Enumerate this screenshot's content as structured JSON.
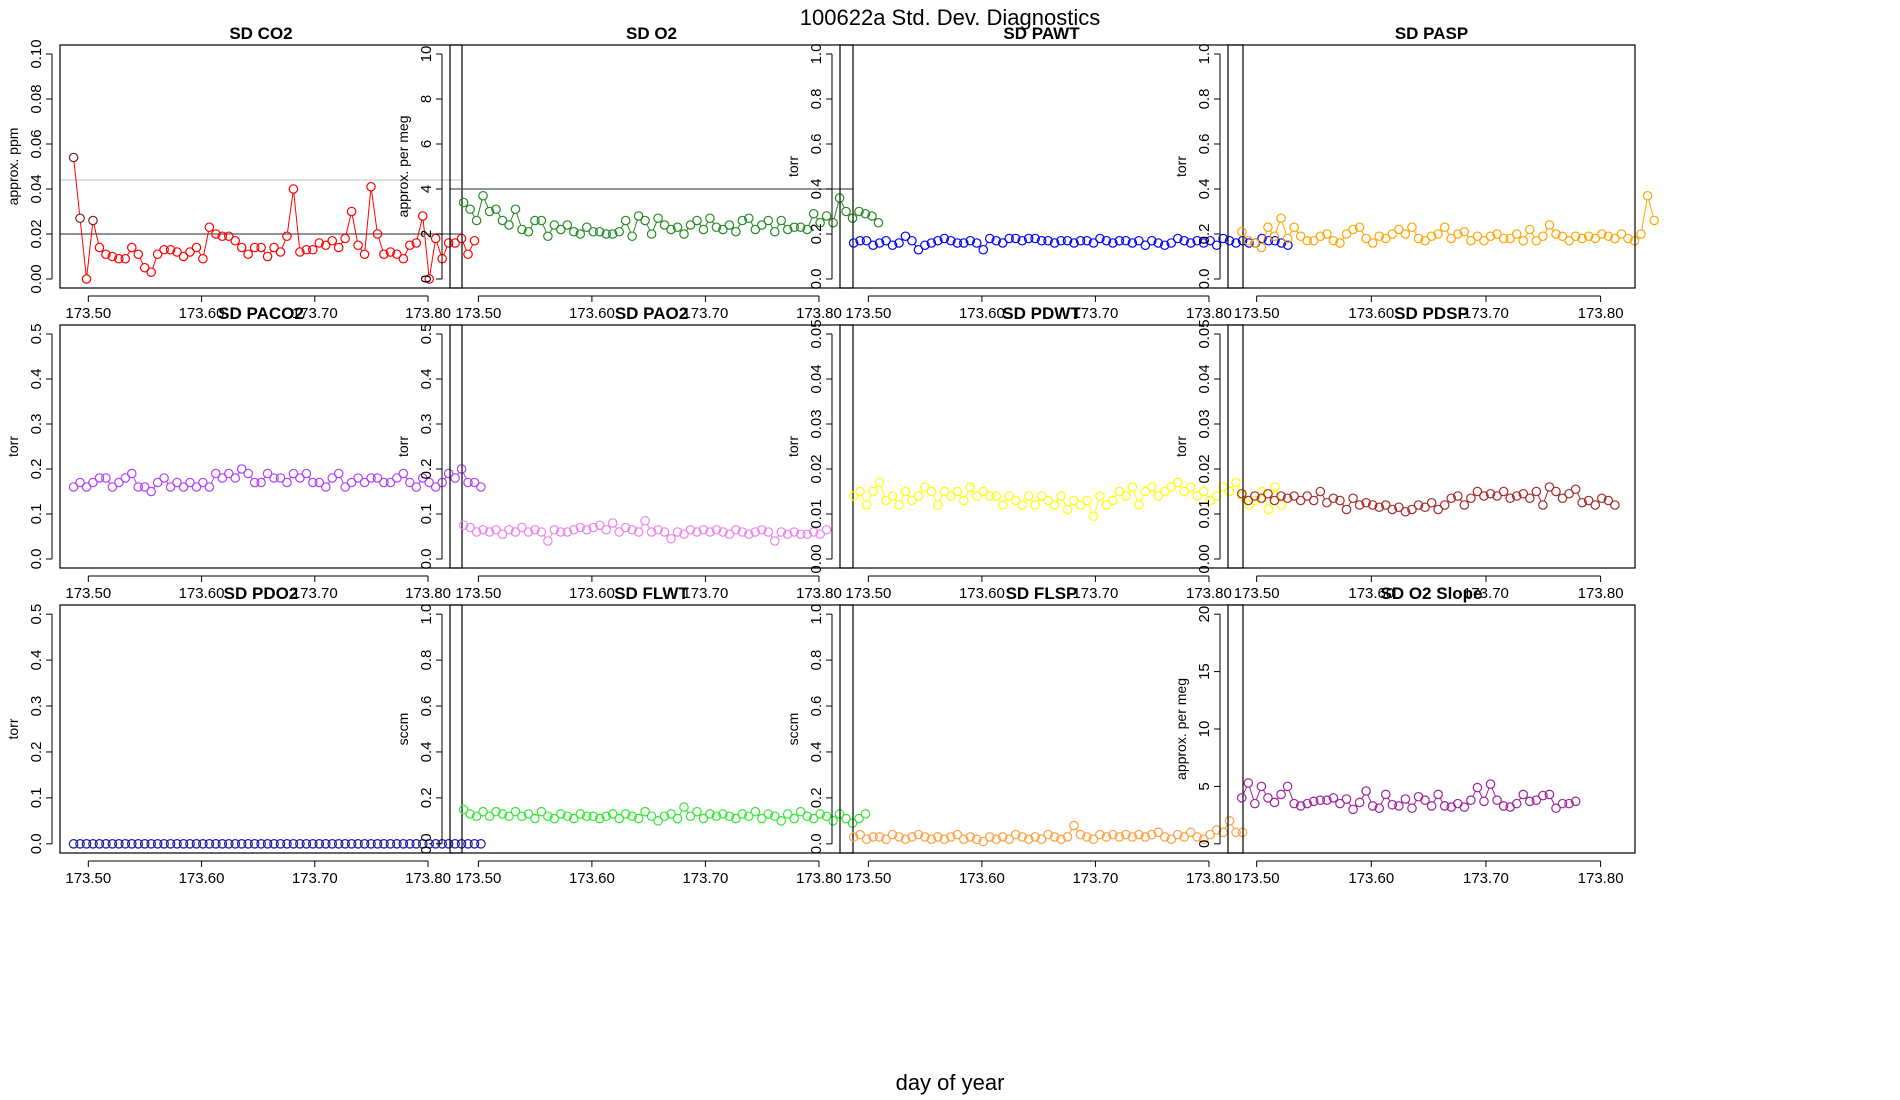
{
  "figure": {
    "title": "100622a   Std. Dev. Diagnostics",
    "xlabel": "day of year"
  },
  "chart_data": [
    {
      "type": "scatter",
      "title": "SD CO2",
      "ylabel": "approx. ppm",
      "color": "#ff0000",
      "xlim": [
        173.475,
        173.83
      ],
      "ylim": [
        -0.004,
        0.104
      ],
      "yticks": [
        "0.00",
        "0.02",
        "0.04",
        "0.06",
        "0.08",
        "0.10"
      ],
      "ytick_values": [
        0,
        0.02,
        0.04,
        0.06,
        0.08,
        0.1
      ],
      "xticks": [
        "173.50",
        "173.60",
        "173.70",
        "173.80"
      ],
      "xtick_values": [
        173.5,
        173.6,
        173.7,
        173.8
      ],
      "hlines": [
        {
          "y": 0.02,
          "color": "#555555"
        },
        {
          "y": 0.044,
          "color": "#cccccc"
        }
      ],
      "highlight": {
        "color": "#7a2020",
        "indices": [
          0,
          1,
          3
        ]
      },
      "x_start": 173.487,
      "x_step": 0.00571,
      "values": [
        0.054,
        0.027,
        0.0,
        0.026,
        0.014,
        0.011,
        0.01,
        0.009,
        0.009,
        0.014,
        0.011,
        0.005,
        0.003,
        0.011,
        0.013,
        0.013,
        0.012,
        0.01,
        0.012,
        0.014,
        0.009,
        0.023,
        0.02,
        0.019,
        0.019,
        0.017,
        0.014,
        0.011,
        0.014,
        0.014,
        0.01,
        0.014,
        0.012,
        0.019,
        0.04,
        0.012,
        0.013,
        0.013,
        0.016,
        0.015,
        0.017,
        0.014,
        0.018,
        0.03,
        0.015,
        0.011,
        0.041,
        0.02,
        0.011,
        0.012,
        0.011,
        0.009,
        0.015,
        0.016,
        0.028,
        0.0,
        0.018,
        0.009,
        0.016,
        0.016,
        0.018,
        0.011,
        0.017
      ]
    },
    {
      "type": "scatter",
      "title": "SD O2",
      "ylabel": "approx. per meg",
      "color": "#228b22",
      "xlim": [
        173.475,
        173.83
      ],
      "ylim": [
        -0.4,
        10.4
      ],
      "yticks": [
        "0",
        "2",
        "4",
        "6",
        "8",
        "10"
      ],
      "ytick_values": [
        0,
        2,
        4,
        6,
        8,
        10
      ],
      "xticks": [
        "173.50",
        "173.60",
        "173.70",
        "173.80"
      ],
      "xtick_values": [
        173.5,
        173.6,
        173.7,
        173.8
      ],
      "hlines": [
        {
          "y": 4,
          "color": "#555555"
        }
      ],
      "x_start": 173.487,
      "x_step": 0.00571,
      "values": [
        3.4,
        3.1,
        2.6,
        3.7,
        3.0,
        3.1,
        2.6,
        2.4,
        3.1,
        2.2,
        2.1,
        2.6,
        2.6,
        1.9,
        2.4,
        2.2,
        2.4,
        2.1,
        2.0,
        2.3,
        2.1,
        2.1,
        2.0,
        2.0,
        2.1,
        2.6,
        1.9,
        2.8,
        2.6,
        2.0,
        2.7,
        2.4,
        2.2,
        2.3,
        2.0,
        2.4,
        2.6,
        2.2,
        2.7,
        2.3,
        2.2,
        2.4,
        2.1,
        2.6,
        2.7,
        2.2,
        2.4,
        2.6,
        2.1,
        2.6,
        2.2,
        2.3,
        2.3,
        2.2,
        2.9,
        2.5,
        2.8,
        2.5,
        3.6,
        3.0,
        2.7,
        3.0,
        2.9,
        2.8,
        2.5
      ]
    },
    {
      "type": "scatter",
      "title": "SD PAWT",
      "ylabel": "torr",
      "color": "#0000ff",
      "xlim": [
        173.475,
        173.83
      ],
      "ylim": [
        -0.04,
        1.04
      ],
      "yticks": [
        "0.0",
        "0.2",
        "0.4",
        "0.6",
        "0.8",
        "1.0"
      ],
      "ytick_values": [
        0,
        0.2,
        0.4,
        0.6,
        0.8,
        1.0
      ],
      "xticks": [
        "173.50",
        "173.60",
        "173.70",
        "173.80"
      ],
      "xtick_values": [
        173.5,
        173.6,
        173.7,
        173.8
      ],
      "x_start": 173.487,
      "x_step": 0.00571,
      "values": [
        0.16,
        0.17,
        0.17,
        0.15,
        0.16,
        0.17,
        0.15,
        0.16,
        0.19,
        0.17,
        0.13,
        0.15,
        0.16,
        0.17,
        0.18,
        0.17,
        0.16,
        0.16,
        0.17,
        0.16,
        0.13,
        0.18,
        0.17,
        0.16,
        0.18,
        0.18,
        0.17,
        0.18,
        0.18,
        0.17,
        0.17,
        0.16,
        0.17,
        0.17,
        0.16,
        0.17,
        0.17,
        0.16,
        0.18,
        0.17,
        0.16,
        0.17,
        0.17,
        0.16,
        0.17,
        0.15,
        0.17,
        0.16,
        0.15,
        0.16,
        0.18,
        0.17,
        0.16,
        0.17,
        0.16,
        0.17,
        0.15,
        0.18,
        0.17,
        0.16,
        0.17,
        0.16,
        0.16,
        0.18,
        0.17,
        0.17,
        0.16,
        0.15
      ]
    },
    {
      "type": "scatter",
      "title": "SD PASP",
      "ylabel": "torr",
      "color": "#ffa500",
      "xlim": [
        173.475,
        173.83
      ],
      "ylim": [
        -0.04,
        1.04
      ],
      "yticks": [
        "0.0",
        "0.2",
        "0.4",
        "0.6",
        "0.8",
        "1.0"
      ],
      "ytick_values": [
        0,
        0.2,
        0.4,
        0.6,
        0.8,
        1.0
      ],
      "xticks": [
        "173.50",
        "173.60",
        "173.70",
        "173.80"
      ],
      "xtick_values": [
        173.5,
        173.6,
        173.7,
        173.8
      ],
      "x_start": 173.487,
      "x_step": 0.00571,
      "values": [
        0.21,
        0.17,
        0.16,
        0.14,
        0.23,
        0.19,
        0.27,
        0.18,
        0.23,
        0.19,
        0.17,
        0.17,
        0.19,
        0.2,
        0.17,
        0.16,
        0.2,
        0.22,
        0.23,
        0.18,
        0.16,
        0.19,
        0.18,
        0.2,
        0.22,
        0.2,
        0.23,
        0.18,
        0.17,
        0.19,
        0.2,
        0.23,
        0.18,
        0.2,
        0.21,
        0.17,
        0.19,
        0.17,
        0.19,
        0.2,
        0.18,
        0.18,
        0.2,
        0.17,
        0.22,
        0.17,
        0.19,
        0.24,
        0.2,
        0.19,
        0.17,
        0.19,
        0.18,
        0.19,
        0.18,
        0.2,
        0.19,
        0.18,
        0.2,
        0.18,
        0.17,
        0.2,
        0.37,
        0.26
      ]
    },
    {
      "type": "scatter",
      "title": "SD PACO2",
      "ylabel": "torr",
      "color": "#b040ff",
      "xlim": [
        173.475,
        173.83
      ],
      "ylim": [
        -0.02,
        0.52
      ],
      "yticks": [
        "0.0",
        "0.1",
        "0.2",
        "0.3",
        "0.4",
        "0.5"
      ],
      "ytick_values": [
        0,
        0.1,
        0.2,
        0.3,
        0.4,
        0.5
      ],
      "xticks": [
        "173.50",
        "173.60",
        "173.70",
        "173.80"
      ],
      "xtick_values": [
        173.5,
        173.6,
        173.7,
        173.8
      ],
      "x_start": 173.487,
      "x_step": 0.00571,
      "values": [
        0.16,
        0.17,
        0.16,
        0.17,
        0.18,
        0.18,
        0.16,
        0.17,
        0.18,
        0.19,
        0.16,
        0.16,
        0.15,
        0.17,
        0.18,
        0.16,
        0.17,
        0.16,
        0.17,
        0.16,
        0.17,
        0.16,
        0.19,
        0.18,
        0.19,
        0.18,
        0.2,
        0.19,
        0.17,
        0.17,
        0.19,
        0.18,
        0.18,
        0.17,
        0.19,
        0.18,
        0.19,
        0.17,
        0.17,
        0.16,
        0.18,
        0.19,
        0.16,
        0.17,
        0.18,
        0.17,
        0.18,
        0.18,
        0.17,
        0.17,
        0.18,
        0.19,
        0.17,
        0.16,
        0.18,
        0.17,
        0.16,
        0.17,
        0.19,
        0.18,
        0.2,
        0.17,
        0.17,
        0.16
      ]
    },
    {
      "type": "scatter",
      "title": "SD PAO2",
      "ylabel": "torr",
      "color": "#ee82ee",
      "xlim": [
        173.475,
        173.83
      ],
      "ylim": [
        -0.02,
        0.52
      ],
      "yticks": [
        "0.0",
        "0.1",
        "0.2",
        "0.3",
        "0.4",
        "0.5"
      ],
      "ytick_values": [
        0,
        0.1,
        0.2,
        0.3,
        0.4,
        0.5
      ],
      "xticks": [
        "173.50",
        "173.60",
        "173.70",
        "173.80"
      ],
      "xtick_values": [
        173.5,
        173.6,
        173.7,
        173.8
      ],
      "x_start": 173.487,
      "x_step": 0.00571,
      "values": [
        0.075,
        0.07,
        0.06,
        0.065,
        0.06,
        0.065,
        0.055,
        0.065,
        0.06,
        0.07,
        0.06,
        0.065,
        0.06,
        0.04,
        0.065,
        0.06,
        0.06,
        0.065,
        0.07,
        0.065,
        0.07,
        0.075,
        0.065,
        0.08,
        0.06,
        0.07,
        0.065,
        0.06,
        0.085,
        0.06,
        0.065,
        0.06,
        0.045,
        0.06,
        0.055,
        0.065,
        0.06,
        0.065,
        0.06,
        0.065,
        0.06,
        0.055,
        0.065,
        0.06,
        0.055,
        0.06,
        0.065,
        0.06,
        0.04,
        0.06,
        0.055,
        0.06,
        0.055,
        0.055,
        0.06,
        0.055,
        0.065
      ]
    },
    {
      "type": "scatter",
      "title": "SD PDWT",
      "ylabel": "torr",
      "color": "#ffff00",
      "xlim": [
        173.475,
        173.83
      ],
      "ylim": [
        -0.002,
        0.052
      ],
      "yticks": [
        "0.00",
        "0.01",
        "0.02",
        "0.03",
        "0.04",
        "0.05"
      ],
      "ytick_values": [
        0,
        0.01,
        0.02,
        0.03,
        0.04,
        0.05
      ],
      "xticks": [
        "173.50",
        "173.60",
        "173.70",
        "173.80"
      ],
      "xtick_values": [
        173.5,
        173.6,
        173.7,
        173.8
      ],
      "x_start": 173.487,
      "x_step": 0.00571,
      "values": [
        0.014,
        0.015,
        0.012,
        0.015,
        0.017,
        0.013,
        0.014,
        0.012,
        0.015,
        0.013,
        0.014,
        0.016,
        0.015,
        0.012,
        0.015,
        0.014,
        0.015,
        0.013,
        0.016,
        0.014,
        0.015,
        0.014,
        0.014,
        0.012,
        0.014,
        0.013,
        0.012,
        0.014,
        0.012,
        0.014,
        0.013,
        0.012,
        0.014,
        0.011,
        0.013,
        0.012,
        0.013,
        0.0095,
        0.014,
        0.012,
        0.013,
        0.015,
        0.014,
        0.016,
        0.012,
        0.015,
        0.016,
        0.014,
        0.015,
        0.016,
        0.017,
        0.015,
        0.016,
        0.014,
        0.015,
        0.013,
        0.014,
        0.016,
        0.015,
        0.017,
        0.014,
        0.012,
        0.013,
        0.015,
        0.011,
        0.016,
        0.012
      ]
    },
    {
      "type": "scatter",
      "title": "SD PDSP",
      "ylabel": "torr",
      "color": "#a52a2a",
      "xlim": [
        173.475,
        173.83
      ],
      "ylim": [
        -0.002,
        0.052
      ],
      "yticks": [
        "0.00",
        "0.01",
        "0.02",
        "0.03",
        "0.04",
        "0.05"
      ],
      "ytick_values": [
        0,
        0.01,
        0.02,
        0.03,
        0.04,
        0.05
      ],
      "xticks": [
        "173.50",
        "173.60",
        "173.70",
        "173.80"
      ],
      "xtick_values": [
        173.5,
        173.6,
        173.7,
        173.8
      ],
      "x_start": 173.487,
      "x_step": 0.00571,
      "values": [
        0.0145,
        0.013,
        0.014,
        0.0135,
        0.0145,
        0.013,
        0.014,
        0.0135,
        0.014,
        0.013,
        0.014,
        0.013,
        0.015,
        0.0125,
        0.0135,
        0.013,
        0.011,
        0.0135,
        0.012,
        0.0125,
        0.012,
        0.0115,
        0.012,
        0.011,
        0.0115,
        0.0105,
        0.011,
        0.012,
        0.0115,
        0.0125,
        0.011,
        0.012,
        0.0135,
        0.014,
        0.012,
        0.0135,
        0.015,
        0.014,
        0.0145,
        0.014,
        0.015,
        0.0135,
        0.014,
        0.0145,
        0.0135,
        0.015,
        0.012,
        0.016,
        0.015,
        0.0135,
        0.0145,
        0.0155,
        0.0125,
        0.013,
        0.012,
        0.0135,
        0.013,
        0.012
      ]
    },
    {
      "type": "scatter",
      "title": "SD PDO2",
      "ylabel": "torr",
      "color": "#1a1aa0",
      "xlim": [
        173.475,
        173.83
      ],
      "ylim": [
        -0.02,
        0.52
      ],
      "yticks": [
        "0.0",
        "0.1",
        "0.2",
        "0.3",
        "0.4",
        "0.5"
      ],
      "ytick_values": [
        0,
        0.1,
        0.2,
        0.3,
        0.4,
        0.5
      ],
      "xticks": [
        "173.50",
        "173.60",
        "173.70",
        "173.80"
      ],
      "xtick_values": [
        173.5,
        173.6,
        173.7,
        173.8
      ],
      "x_start": 173.487,
      "x_step": 0.00571,
      "values": [
        0,
        0,
        0,
        0,
        0,
        0,
        0,
        0,
        0,
        0,
        0,
        0,
        0,
        0,
        0,
        0,
        0,
        0,
        0,
        0,
        0,
        0,
        0,
        0,
        0,
        0,
        0,
        0,
        0,
        0,
        0,
        0,
        0,
        0,
        0,
        0,
        0,
        0,
        0,
        0,
        0,
        0,
        0,
        0,
        0,
        0,
        0,
        0,
        0,
        0,
        0,
        0,
        0,
        0,
        0,
        0,
        0,
        0,
        0,
        0,
        0,
        0,
        0,
        0
      ]
    },
    {
      "type": "scatter",
      "title": "SD FLWT",
      "ylabel": "sccm",
      "color": "#32e832",
      "xlim": [
        173.475,
        173.83
      ],
      "ylim": [
        -0.04,
        1.04
      ],
      "yticks": [
        "0.0",
        "0.2",
        "0.4",
        "0.6",
        "0.8",
        "1.0"
      ],
      "ytick_values": [
        0,
        0.2,
        0.4,
        0.6,
        0.8,
        1.0
      ],
      "xticks": [
        "173.50",
        "173.60",
        "173.70",
        "173.80"
      ],
      "xtick_values": [
        173.5,
        173.6,
        173.7,
        173.8
      ],
      "x_start": 173.487,
      "x_step": 0.00571,
      "values": [
        0.15,
        0.13,
        0.12,
        0.14,
        0.12,
        0.14,
        0.13,
        0.12,
        0.14,
        0.12,
        0.13,
        0.11,
        0.14,
        0.12,
        0.11,
        0.13,
        0.12,
        0.11,
        0.13,
        0.12,
        0.12,
        0.11,
        0.12,
        0.13,
        0.11,
        0.13,
        0.12,
        0.11,
        0.14,
        0.12,
        0.1,
        0.12,
        0.13,
        0.11,
        0.16,
        0.12,
        0.14,
        0.11,
        0.13,
        0.12,
        0.13,
        0.12,
        0.11,
        0.13,
        0.12,
        0.14,
        0.11,
        0.13,
        0.12,
        0.1,
        0.13,
        0.11,
        0.14,
        0.12,
        0.11,
        0.13,
        0.12,
        0.1,
        0.13,
        0.11,
        0.09,
        0.11,
        0.13
      ]
    },
    {
      "type": "scatter",
      "title": "SD FLSP",
      "ylabel": "sccm",
      "color": "#ffa040",
      "xlim": [
        173.475,
        173.83
      ],
      "ylim": [
        -0.04,
        1.04
      ],
      "yticks": [
        "0.0",
        "0.2",
        "0.4",
        "0.6",
        "0.8",
        "1.0"
      ],
      "ytick_values": [
        0,
        0.2,
        0.4,
        0.6,
        0.8,
        1.0
      ],
      "xticks": [
        "173.50",
        "173.60",
        "173.70",
        "173.80"
      ],
      "xtick_values": [
        173.5,
        173.6,
        173.7,
        173.8
      ],
      "x_start": 173.487,
      "x_step": 0.00571,
      "values": [
        0.03,
        0.04,
        0.02,
        0.03,
        0.03,
        0.02,
        0.04,
        0.03,
        0.02,
        0.03,
        0.04,
        0.03,
        0.02,
        0.03,
        0.02,
        0.03,
        0.04,
        0.02,
        0.03,
        0.02,
        0.01,
        0.03,
        0.02,
        0.03,
        0.02,
        0.04,
        0.03,
        0.02,
        0.03,
        0.02,
        0.04,
        0.03,
        0.02,
        0.03,
        0.08,
        0.04,
        0.03,
        0.02,
        0.04,
        0.03,
        0.04,
        0.03,
        0.04,
        0.03,
        0.04,
        0.03,
        0.04,
        0.05,
        0.03,
        0.02,
        0.04,
        0.03,
        0.05,
        0.03,
        0.02,
        0.04,
        0.06,
        0.05,
        0.1,
        0.05,
        0.05
      ]
    },
    {
      "type": "scatter",
      "title": "SD O2 Slope",
      "ylabel": "approx. per meg",
      "color": "#a020a0",
      "xlim": [
        173.475,
        173.83
      ],
      "ylim": [
        -0.8,
        20.8
      ],
      "yticks": [
        "0",
        "5",
        "10",
        "15",
        "20"
      ],
      "ytick_values": [
        0,
        5,
        10,
        15,
        20
      ],
      "xticks": [
        "173.50",
        "173.60",
        "173.70",
        "173.80"
      ],
      "xtick_values": [
        173.5,
        173.6,
        173.7,
        173.8
      ],
      "x_start": 173.487,
      "x_step": 0.00571,
      "values": [
        4.0,
        5.3,
        3.5,
        5.0,
        4.0,
        3.6,
        4.3,
        5.0,
        3.5,
        3.3,
        3.5,
        3.7,
        3.8,
        3.8,
        4.0,
        3.5,
        3.9,
        3.0,
        3.6,
        4.6,
        3.3,
        3.1,
        4.3,
        3.4,
        3.3,
        3.9,
        3.1,
        4.1,
        3.8,
        3.3,
        4.3,
        3.3,
        3.2,
        3.5,
        3.2,
        3.8,
        4.9,
        3.7,
        5.2,
        3.8,
        3.3,
        3.2,
        3.5,
        4.3,
        3.7,
        3.8,
        4.2,
        4.3,
        3.1,
        3.5,
        3.5,
        3.7
      ]
    }
  ]
}
